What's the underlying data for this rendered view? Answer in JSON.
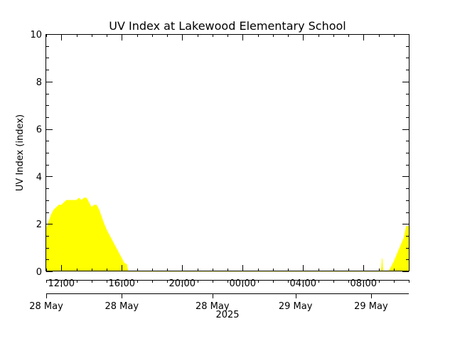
{
  "chart_data": {
    "type": "area",
    "title": "UV Index at Lakewood Elementary School",
    "xlabel": "",
    "ylabel": "UV Index (index)",
    "ylim": [
      0,
      10
    ],
    "yticks": [
      0,
      2,
      4,
      6,
      8,
      10
    ],
    "x_axis": {
      "start": "2025-05-28 11:00",
      "end": "2025-05-29 11:00",
      "ticks": [
        {
          "time": "2025-05-28 12:00",
          "label": "12:00"
        },
        {
          "time": "2025-05-28 16:00",
          "label": "16:00"
        },
        {
          "time": "2025-05-28 20:00",
          "label": "20:00"
        },
        {
          "time": "2025-05-29 00:00",
          "label": "00:00"
        },
        {
          "time": "2025-05-29 04:00",
          "label": "04:00"
        },
        {
          "time": "2025-05-29 08:00",
          "label": "08:00"
        }
      ],
      "date_labels": [
        {
          "time": "2025-05-28 11:00",
          "label": "28 May"
        },
        {
          "time": "2025-05-28 16:00",
          "label": "28 May"
        },
        {
          "time": "2025-05-28 22:00",
          "label": "28 May"
        },
        {
          "time": "2025-05-29 03:30",
          "label": "29 May"
        },
        {
          "time": "2025-05-29 08:30",
          "label": "29 May"
        }
      ],
      "year_label": "2025"
    },
    "series": [
      {
        "color": "#ffff00",
        "points": [
          [
            "2025-05-28 11:00",
            1.8
          ],
          [
            "2025-05-28 11:10",
            2.1
          ],
          [
            "2025-05-28 11:20",
            2.4
          ],
          [
            "2025-05-28 11:30",
            2.6
          ],
          [
            "2025-05-28 11:40",
            2.7
          ],
          [
            "2025-05-28 11:50",
            2.8
          ],
          [
            "2025-05-28 12:00",
            2.8
          ],
          [
            "2025-05-28 12:10",
            2.9
          ],
          [
            "2025-05-28 12:20",
            3.0
          ],
          [
            "2025-05-28 12:30",
            3.0
          ],
          [
            "2025-05-28 12:40",
            3.0
          ],
          [
            "2025-05-28 12:50",
            3.0
          ],
          [
            "2025-05-28 13:00",
            3.0
          ],
          [
            "2025-05-28 13:10",
            3.1
          ],
          [
            "2025-05-28 13:20",
            3.0
          ],
          [
            "2025-05-28 13:30",
            3.1
          ],
          [
            "2025-05-28 13:40",
            3.1
          ],
          [
            "2025-05-28 13:50",
            2.9
          ],
          [
            "2025-05-28 14:00",
            2.7
          ],
          [
            "2025-05-28 14:10",
            2.8
          ],
          [
            "2025-05-28 14:20",
            2.8
          ],
          [
            "2025-05-28 14:30",
            2.6
          ],
          [
            "2025-05-28 14:40",
            2.3
          ],
          [
            "2025-05-28 14:50",
            2.0
          ],
          [
            "2025-05-28 15:00",
            1.75
          ],
          [
            "2025-05-28 15:10",
            1.55
          ],
          [
            "2025-05-28 15:20",
            1.35
          ],
          [
            "2025-05-28 15:30",
            1.15
          ],
          [
            "2025-05-28 15:40",
            0.95
          ],
          [
            "2025-05-28 15:50",
            0.75
          ],
          [
            "2025-05-28 16:00",
            0.55
          ],
          [
            "2025-05-28 16:10",
            0.35
          ],
          [
            "2025-05-28 16:20",
            0.3
          ],
          [
            "2025-05-28 16:25",
            0.0
          ],
          [
            "2025-05-29 09:10",
            0.0
          ],
          [
            "2025-05-29 09:14",
            0.55
          ],
          [
            "2025-05-29 09:18",
            0.0
          ],
          [
            "2025-05-29 09:40",
            0.0
          ],
          [
            "2025-05-29 10:00",
            0.4
          ],
          [
            "2025-05-29 10:20",
            0.9
          ],
          [
            "2025-05-29 10:40",
            1.4
          ],
          [
            "2025-05-29 10:50",
            1.9
          ],
          [
            "2025-05-29 11:00",
            1.9
          ]
        ]
      }
    ],
    "grid": false
  }
}
